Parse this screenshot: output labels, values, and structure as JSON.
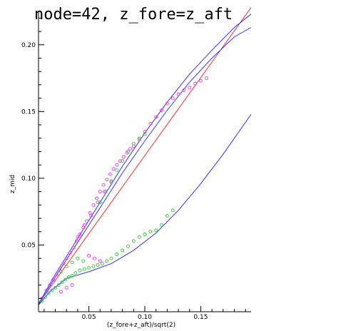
{
  "chart_data": {
    "type": "scatter",
    "title": "node=42, z_fore=z_aft",
    "xlabel": "(z_fore+z_aft)/sqrt(2)",
    "ylabel": "z_mid",
    "xlim": [
      0.005,
      0.195
    ],
    "ylim": [
      0.0,
      0.225
    ],
    "x_ticks": [
      0.05,
      0.1,
      0.15
    ],
    "x_tick_labels": [
      "0.05",
      "0.10",
      "0.15"
    ],
    "y_ticks": [
      0.05,
      0.1,
      0.15,
      0.2
    ],
    "y_tick_labels": [
      "0.05",
      "0.10",
      "0.15",
      "0.20"
    ],
    "grid": false,
    "colors": {
      "curve_blue": "#3333ff",
      "line_red": "#ff3333",
      "points_magenta": "#ff33ff",
      "points_green": "#33cc33",
      "axis": "#000000"
    },
    "series": [
      {
        "kind": "line",
        "color_key": "line_red",
        "x": [
          0.005,
          0.195
        ],
        "y": [
          0.006,
          0.228
        ]
      },
      {
        "kind": "line",
        "color_key": "curve_blue",
        "x": [
          0.005,
          0.02,
          0.04,
          0.06,
          0.08,
          0.1,
          0.12,
          0.14,
          0.16,
          0.18,
          0.195
        ],
        "y": [
          0.006,
          0.028,
          0.055,
          0.082,
          0.109,
          0.134,
          0.157,
          0.178,
          0.196,
          0.213,
          0.223
        ]
      },
      {
        "kind": "line",
        "color_key": "curve_blue",
        "x": [
          0.005,
          0.02,
          0.04,
          0.06,
          0.08,
          0.1,
          0.12,
          0.14,
          0.16,
          0.18,
          0.195
        ],
        "y": [
          0.005,
          0.026,
          0.052,
          0.078,
          0.104,
          0.128,
          0.151,
          0.172,
          0.19,
          0.206,
          0.213
        ]
      },
      {
        "kind": "line",
        "color_key": "curve_blue",
        "x": [
          0.005,
          0.015,
          0.03,
          0.05,
          0.07,
          0.09,
          0.11,
          0.13,
          0.15,
          0.17,
          0.195
        ],
        "y": [
          0.005,
          0.015,
          0.025,
          0.03,
          0.036,
          0.046,
          0.059,
          0.076,
          0.096,
          0.118,
          0.148
        ]
      },
      {
        "kind": "scatter",
        "color_key": "points_magenta",
        "x": [
          0.008,
          0.012,
          0.015,
          0.018,
          0.021,
          0.024,
          0.027,
          0.03,
          0.033,
          0.036,
          0.039,
          0.042,
          0.045,
          0.048,
          0.051,
          0.054,
          0.057,
          0.06,
          0.063,
          0.066,
          0.069,
          0.072,
          0.075,
          0.078,
          0.081,
          0.084,
          0.087,
          0.09,
          0.095,
          0.1,
          0.105,
          0.11,
          0.115,
          0.12,
          0.125,
          0.13,
          0.135,
          0.14,
          0.145,
          0.15,
          0.155,
          0.04,
          0.046,
          0.052,
          0.058,
          0.064,
          0.07,
          0.035,
          0.03,
          0.025,
          0.05,
          0.055,
          0.06
        ],
        "y": [
          0.01,
          0.016,
          0.02,
          0.024,
          0.028,
          0.032,
          0.036,
          0.04,
          0.044,
          0.048,
          0.053,
          0.058,
          0.063,
          0.068,
          0.074,
          0.08,
          0.085,
          0.09,
          0.095,
          0.099,
          0.103,
          0.107,
          0.11,
          0.113,
          0.116,
          0.119,
          0.122,
          0.124,
          0.129,
          0.135,
          0.141,
          0.146,
          0.151,
          0.156,
          0.16,
          0.163,
          0.166,
          0.168,
          0.171,
          0.173,
          0.175,
          0.056,
          0.065,
          0.072,
          0.082,
          0.09,
          0.097,
          0.02,
          0.018,
          0.015,
          0.042,
          0.04,
          0.038
        ]
      },
      {
        "kind": "scatter",
        "color_key": "points_green",
        "x": [
          0.008,
          0.011,
          0.014,
          0.017,
          0.02,
          0.023,
          0.026,
          0.029,
          0.032,
          0.035,
          0.038,
          0.042,
          0.046,
          0.05,
          0.054,
          0.058,
          0.062,
          0.066,
          0.07,
          0.075,
          0.08,
          0.085,
          0.09,
          0.095,
          0.1,
          0.105,
          0.11,
          0.115,
          0.12,
          0.125,
          0.06,
          0.065,
          0.07,
          0.075,
          0.08,
          0.085,
          0.09,
          0.095,
          0.1,
          0.025,
          0.03,
          0.035,
          0.04,
          0.045
        ],
        "y": [
          0.008,
          0.011,
          0.014,
          0.016,
          0.018,
          0.02,
          0.022,
          0.024,
          0.026,
          0.027,
          0.029,
          0.031,
          0.032,
          0.033,
          0.034,
          0.035,
          0.036,
          0.038,
          0.04,
          0.043,
          0.046,
          0.049,
          0.053,
          0.056,
          0.058,
          0.06,
          0.061,
          0.065,
          0.072,
          0.076,
          0.082,
          0.09,
          0.098,
          0.106,
          0.113,
          0.12,
          0.126,
          0.13,
          0.133,
          0.03,
          0.034,
          0.037,
          0.04,
          0.038
        ]
      }
    ]
  }
}
